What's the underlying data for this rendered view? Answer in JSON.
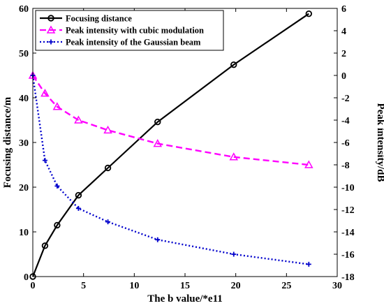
{
  "chart_data": {
    "type": "line",
    "title": "",
    "xlabel": "The b value/*e11",
    "ylabel_left": "Focusing distance/m",
    "ylabel_right": "Peak intensity/dB",
    "xlim": [
      0,
      30
    ],
    "ylim_left": [
      0,
      60
    ],
    "ylim_right": [
      -18,
      6
    ],
    "x_ticks": [
      "0",
      "5",
      "10",
      "15",
      "20",
      "25",
      "30"
    ],
    "y_left_ticks": [
      "0",
      "10",
      "20",
      "30",
      "40",
      "50",
      "60"
    ],
    "y_right_ticks": [
      "-18",
      "-16",
      "-14",
      "-12",
      "-10",
      "-8",
      "-6",
      "-4",
      "-2",
      "0",
      "2",
      "4",
      "6"
    ],
    "grid": false,
    "legend_position": "top-left",
    "series": [
      {
        "name": "Focusing distance",
        "axis": "left",
        "color": "#000000",
        "line_style": "solid",
        "marker": "circle",
        "x": [
          0,
          1.2,
          2.4,
          4.5,
          7.4,
          12.3,
          19.8,
          27.2
        ],
        "y": [
          0,
          6.9,
          11.5,
          18.2,
          24.3,
          34.6,
          47.4,
          58.8
        ]
      },
      {
        "name": "Peak intensity with cubic modulation",
        "axis": "right",
        "color": "#ff00ff",
        "line_style": "dashed",
        "marker": "triangle",
        "x": [
          0,
          1.2,
          2.4,
          4.5,
          7.4,
          12.3,
          19.8,
          27.2
        ],
        "y": [
          0,
          -1.6,
          -2.8,
          -4.0,
          -4.9,
          -6.1,
          -7.3,
          -8.0
        ]
      },
      {
        "name": "Peak intensity of the Gaussian beam",
        "axis": "right",
        "color": "#0000cc",
        "line_style": "dotted",
        "marker": "plus",
        "x": [
          0,
          1.2,
          2.4,
          4.5,
          7.4,
          12.3,
          19.8,
          27.2
        ],
        "y": [
          0,
          -7.6,
          -9.9,
          -11.9,
          -13.1,
          -14.7,
          -16.0,
          -16.9
        ]
      }
    ]
  }
}
